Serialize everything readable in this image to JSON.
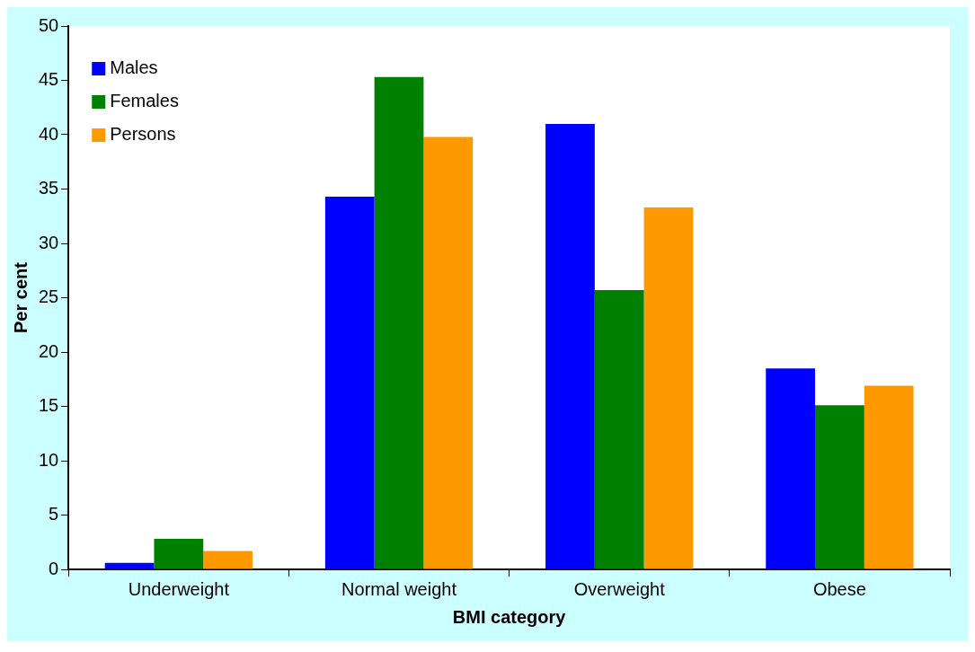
{
  "chart_data": {
    "type": "bar",
    "xlabel": "BMI category",
    "ylabel": "Per cent",
    "categories": [
      "Underweight",
      "Normal weight",
      "Overweight",
      "Obese"
    ],
    "series": [
      {
        "name": "Males",
        "color": "#0000ff",
        "values": [
          0.6,
          34.3,
          41.0,
          18.5
        ]
      },
      {
        "name": "Females",
        "color": "#008000",
        "values": [
          2.8,
          45.3,
          25.7,
          15.1
        ]
      },
      {
        "name": "Persons",
        "color": "#ff9900",
        "values": [
          1.7,
          39.8,
          33.3,
          16.9
        ]
      }
    ],
    "ylim": [
      0,
      50
    ],
    "yticks": [
      0,
      5,
      10,
      15,
      20,
      25,
      30,
      35,
      40,
      45,
      50
    ],
    "grid": false,
    "legend": "top left"
  }
}
